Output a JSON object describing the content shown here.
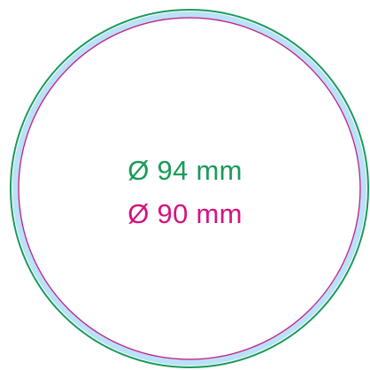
{
  "diagram": {
    "outer_circle": {
      "label": "Ø 94 mm",
      "color": "#1a9a5a"
    },
    "inner_circle": {
      "label": "Ø 90 mm",
      "color": "#d4137f"
    },
    "bleed_band_color": "#b9e1f7",
    "background_color": "#ffffff"
  }
}
